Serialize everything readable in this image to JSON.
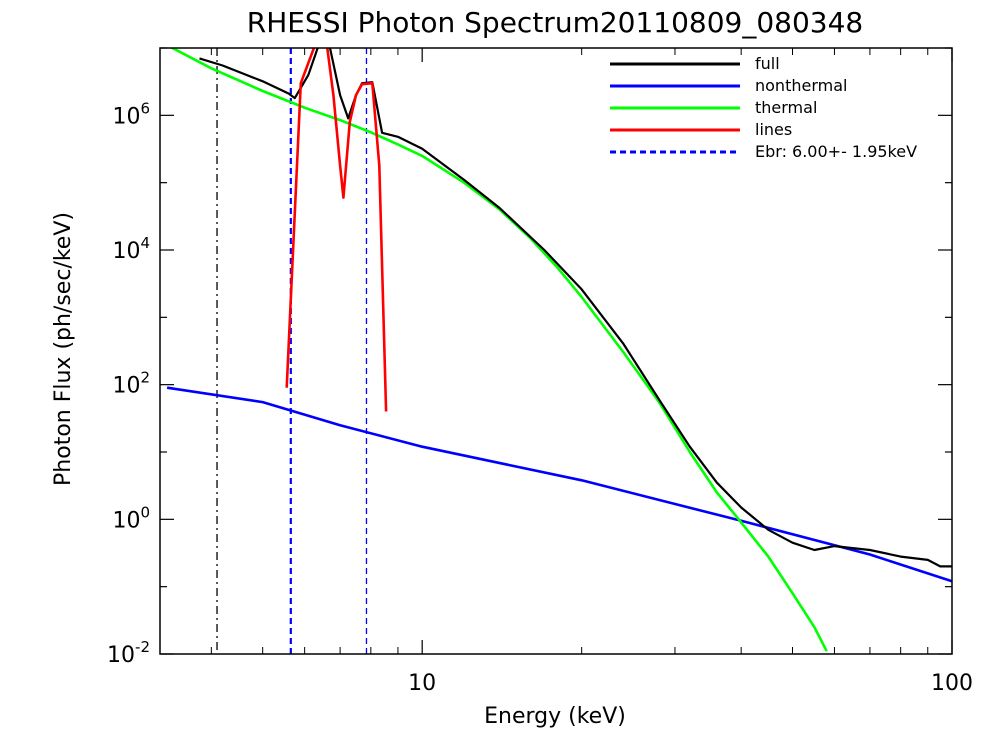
{
  "chart_data": {
    "type": "line",
    "title": "RHESSI Photon Spectrum20110809_080348",
    "xlabel": "Energy (keV)",
    "ylabel": "Photon Flux (ph/sec/keV)",
    "xscale": "log",
    "yscale": "log",
    "xlim": [
      3.2,
      100
    ],
    "ylim": [
      0.01,
      10000000
    ],
    "x_ticks": [
      {
        "value": 10,
        "label": "10"
      },
      {
        "value": 100,
        "label": "100"
      }
    ],
    "y_ticks": [
      {
        "value": 0.01,
        "base": "10",
        "exp": "-2"
      },
      {
        "value": 1,
        "base": "10",
        "exp": "0"
      },
      {
        "value": 100,
        "base": "10",
        "exp": "2"
      },
      {
        "value": 10000,
        "base": "10",
        "exp": "4"
      },
      {
        "value": 1000000,
        "base": "10",
        "exp": "6"
      }
    ],
    "grid": false,
    "legend_position": "top-right",
    "vlines": [
      {
        "x": 4.1,
        "style": "dashdot",
        "color": "#000000"
      },
      {
        "x": 5.65,
        "style": "dashed",
        "color": "#0000ff"
      },
      {
        "x": 7.85,
        "style": "dashed",
        "color": "#0000ff"
      }
    ],
    "series": [
      {
        "name": "full",
        "color": "#000000",
        "style": "solid",
        "points": [
          [
            3.8,
            7000000
          ],
          [
            4.2,
            5500000
          ],
          [
            5.0,
            3200000
          ],
          [
            5.6,
            2100000
          ],
          [
            5.75,
            1800000
          ],
          [
            6.1,
            4000000
          ],
          [
            6.4,
            12000000
          ],
          [
            6.7,
            10000000
          ],
          [
            7.0,
            2000000
          ],
          [
            7.25,
            900000
          ],
          [
            7.5,
            2000000
          ],
          [
            7.7,
            3000000
          ],
          [
            8.05,
            3100000
          ],
          [
            8.4,
            550000
          ],
          [
            9.0,
            480000
          ],
          [
            10.0,
            320000
          ],
          [
            12.0,
            110000
          ],
          [
            14.0,
            42000
          ],
          [
            17.0,
            10000
          ],
          [
            20.0,
            2600
          ],
          [
            24.0,
            400
          ],
          [
            28.0,
            60
          ],
          [
            32.0,
            12
          ],
          [
            36.0,
            3.5
          ],
          [
            40.0,
            1.5
          ],
          [
            45.0,
            0.7
          ],
          [
            50.0,
            0.45
          ],
          [
            55.0,
            0.35
          ],
          [
            60.0,
            0.4
          ],
          [
            70.0,
            0.35
          ],
          [
            80.0,
            0.28
          ],
          [
            90.0,
            0.25
          ],
          [
            95.0,
            0.2
          ],
          [
            100.0,
            0.2
          ]
        ]
      },
      {
        "name": "nonthermal",
        "color": "#0000ff",
        "style": "solid",
        "points": [
          [
            3.3,
            90
          ],
          [
            5.0,
            55
          ],
          [
            7.0,
            25
          ],
          [
            10.0,
            12
          ],
          [
            20.0,
            3.8
          ],
          [
            40.0,
            0.95
          ],
          [
            70.0,
            0.3
          ],
          [
            100.0,
            0.12
          ]
        ]
      },
      {
        "name": "thermal",
        "color": "#00ff00",
        "style": "solid",
        "points": [
          [
            3.3,
            11000000
          ],
          [
            4.0,
            5000000
          ],
          [
            5.0,
            2300000
          ],
          [
            6.0,
            1300000
          ],
          [
            7.0,
            850000
          ],
          [
            8.0,
            560000
          ],
          [
            9.0,
            370000
          ],
          [
            10.0,
            250000
          ],
          [
            12.0,
            100000
          ],
          [
            14.0,
            40000
          ],
          [
            16.0,
            15000
          ],
          [
            18.0,
            5500
          ],
          [
            20.0,
            2000
          ],
          [
            24.0,
            300
          ],
          [
            28.0,
            55
          ],
          [
            32.0,
            10
          ],
          [
            36.0,
            2.5
          ],
          [
            40.0,
            0.9
          ],
          [
            45.0,
            0.28
          ],
          [
            50.0,
            0.08
          ],
          [
            55.0,
            0.025
          ],
          [
            58.0,
            0.011
          ]
        ]
      },
      {
        "name": "lines",
        "color": "#ff0000",
        "style": "solid",
        "points": [
          [
            5.55,
            90
          ],
          [
            5.9,
            3000000
          ],
          [
            6.3,
            12000000
          ],
          [
            6.6,
            12000000
          ],
          [
            6.8,
            2000000
          ],
          [
            7.0,
            180000
          ],
          [
            7.1,
            60000
          ],
          [
            7.3,
            800000
          ],
          [
            7.5,
            2000000
          ],
          [
            7.7,
            2900000
          ],
          [
            8.05,
            3000000
          ],
          [
            8.3,
            180000
          ],
          [
            8.55,
            40
          ]
        ]
      }
    ],
    "annotations": [
      {
        "style": "dashed",
        "color": "#0000ff",
        "label": "Ebr:   6.00+-  1.95keV"
      }
    ]
  }
}
